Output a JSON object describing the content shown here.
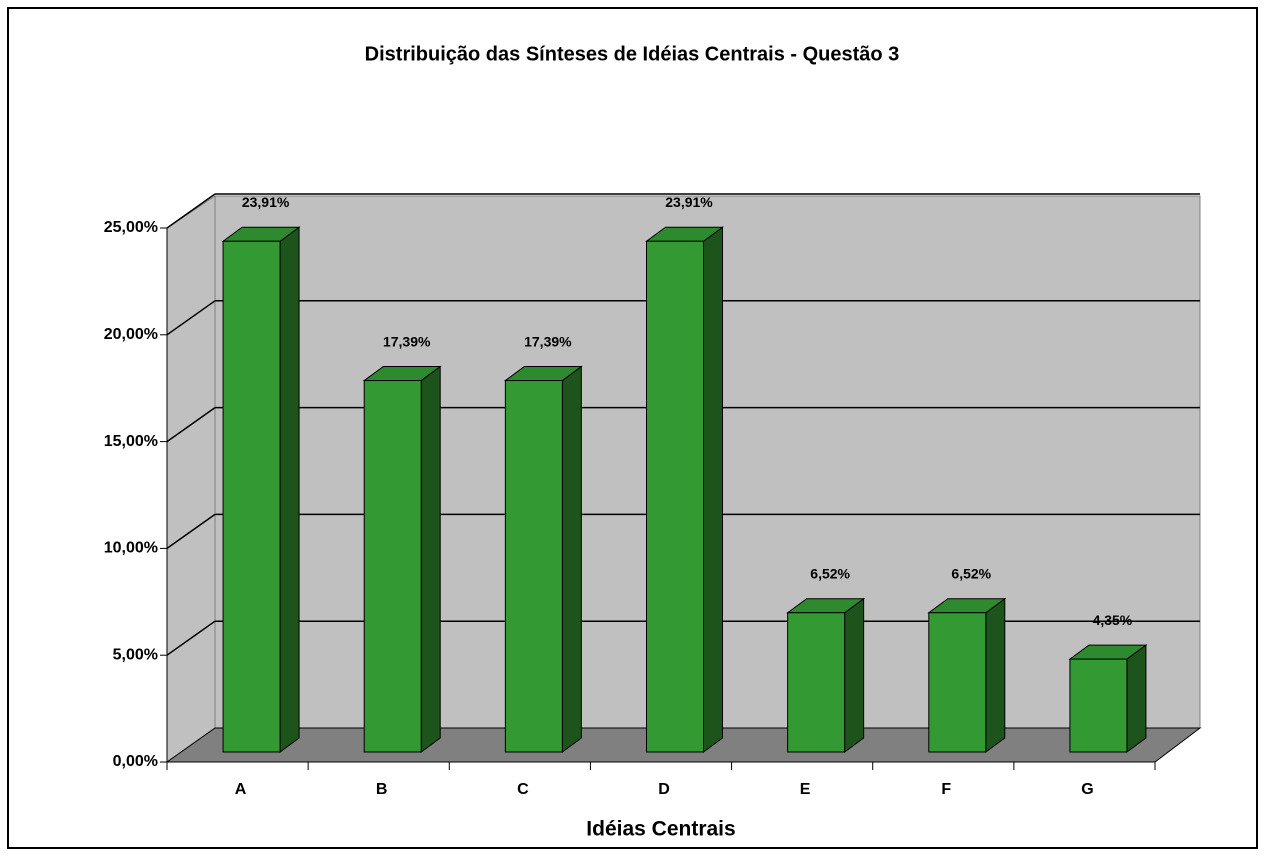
{
  "chart_data": {
    "type": "bar3d",
    "title": "Distribuição das Sínteses de Idéias Centrais - Questão 3",
    "x_label": "Idéias Centrais",
    "categories": [
      "A",
      "B",
      "C",
      "D",
      "E",
      "F",
      "G"
    ],
    "values": [
      23.91,
      17.39,
      17.39,
      23.91,
      6.52,
      6.52,
      4.35
    ],
    "value_labels": [
      "23,91%",
      "17,39%",
      "17,39%",
      "23,91%",
      "6,52%",
      "6,52%",
      "4,35%"
    ],
    "color": "#339933",
    "ylim": [
      0,
      25
    ],
    "yticks": [
      {
        "value": 0,
        "label": "0,00%"
      },
      {
        "value": 5,
        "label": "5,00%"
      },
      {
        "value": 10,
        "label": "10,00%"
      },
      {
        "value": 15,
        "label": "15,00%"
      },
      {
        "value": 20,
        "label": "20,00%"
      },
      {
        "value": 25,
        "label": "25,00%"
      }
    ],
    "grid": true
  }
}
